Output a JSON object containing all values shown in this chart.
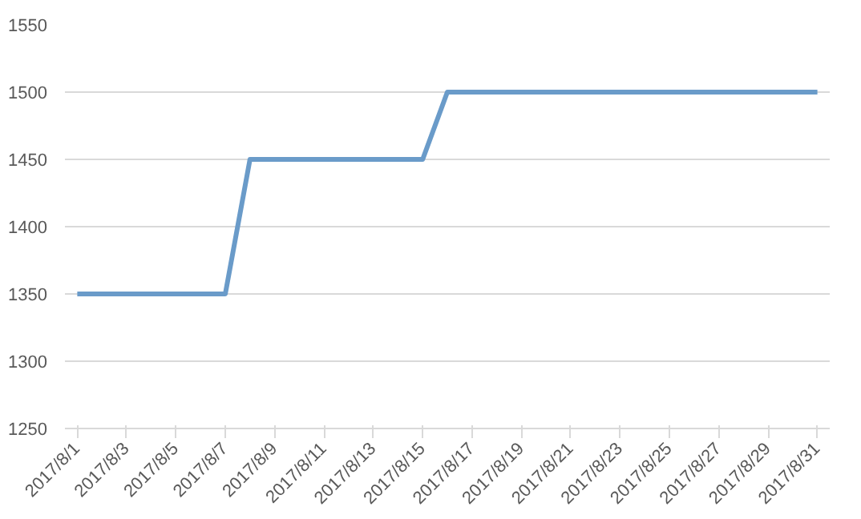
{
  "chart_data": {
    "type": "line",
    "categories": [
      "2017/8/1",
      null,
      "2017/8/3",
      null,
      "2017/8/5",
      null,
      "2017/8/7",
      null,
      "2017/8/9",
      null,
      "2017/8/11",
      null,
      "2017/8/13",
      null,
      "2017/8/15",
      null,
      "2017/8/17",
      null,
      "2017/8/19",
      null,
      "2017/8/21",
      null,
      "2017/8/23",
      null,
      "2017/8/25",
      null,
      "2017/8/27",
      null,
      "2017/8/29",
      null,
      "2017/8/31"
    ],
    "series": [
      {
        "color": "#6a9bc9",
        "values": [
          1350,
          1350,
          1350,
          1350,
          1350,
          1350,
          1350,
          1450,
          1450,
          1450,
          1450,
          1450,
          1450,
          1450,
          1450,
          1500,
          1500,
          1500,
          1500,
          1500,
          1500,
          1500,
          1500,
          1500,
          1500,
          1500,
          1500,
          1500,
          1500,
          1500,
          1500
        ]
      }
    ],
    "ylim": [
      1250,
      1550
    ],
    "yticks": [
      1250,
      1300,
      1350,
      1400,
      1450,
      1500,
      1550
    ],
    "grid": "y"
  }
}
